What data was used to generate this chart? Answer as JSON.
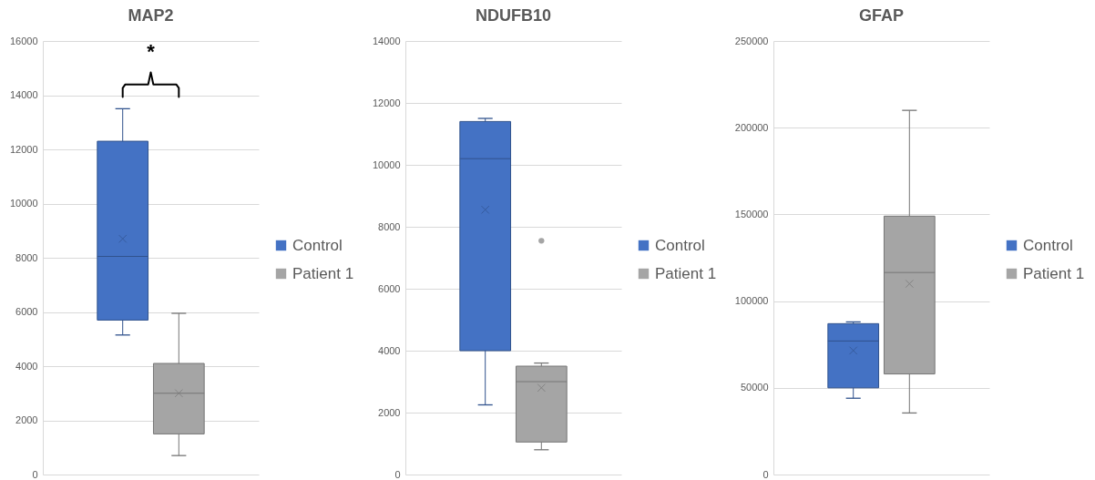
{
  "chart_data": [
    {
      "type": "box",
      "title": "MAP2",
      "categories": [
        null
      ],
      "series": [
        {
          "name": "Control",
          "color": "#4472c4",
          "boxes": [
            {
              "low": 5150,
              "q1": 5700,
              "median": 8050,
              "q3": 12300,
              "high": 13500,
              "mean": 8700
            }
          ]
        },
        {
          "name": "Patient 1",
          "color": "#a5a5a5",
          "boxes": [
            {
              "low": 700,
              "q1": 1500,
              "median": 3000,
              "q3": 4100,
              "high": 5950,
              "mean": 3000
            }
          ]
        }
      ],
      "ylim": [
        0,
        16000
      ],
      "yticks": [
        0,
        2000,
        4000,
        6000,
        8000,
        10000,
        12000,
        14000,
        16000
      ],
      "grid": "y",
      "legend": "right",
      "tick_labels": "y",
      "annotations": [
        "*"
      ]
    },
    {
      "type": "box",
      "title": "NDUFB10",
      "categories": [
        null
      ],
      "series": [
        {
          "name": "Control",
          "color": "#4472c4",
          "boxes": [
            {
              "low": 2250,
              "q1": 4000,
              "median": 10200,
              "q3": 11400,
              "high": 11500,
              "mean": 8550
            }
          ]
        },
        {
          "name": "Patient 1",
          "color": "#a5a5a5",
          "boxes": [
            {
              "low": 800,
              "q1": 1050,
              "median": 3000,
              "q3": 3500,
              "high": 3600,
              "mean": 2800,
              "outliers": [
                7550
              ]
            }
          ]
        }
      ],
      "ylim": [
        0,
        14000
      ],
      "yticks": [
        0,
        2000,
        4000,
        6000,
        8000,
        10000,
        12000,
        14000
      ],
      "grid": "y",
      "legend": "right",
      "tick_labels": "y"
    },
    {
      "type": "box",
      "title": "GFAP",
      "categories": [
        null
      ],
      "series": [
        {
          "name": "Control",
          "color": "#4472c4",
          "boxes": [
            {
              "low": 44000,
              "q1": 50000,
              "median": 77000,
              "q3": 87000,
              "high": 88000,
              "mean": 71500
            }
          ]
        },
        {
          "name": "Patient 1",
          "color": "#a5a5a5",
          "boxes": [
            {
              "low": 35500,
              "q1": 58000,
              "median": 116500,
              "q3": 149000,
              "high": 210000,
              "mean": 110000
            }
          ]
        }
      ],
      "ylim": [
        0,
        250000
      ],
      "yticks": [
        0,
        50000,
        100000,
        150000,
        200000,
        250000
      ],
      "grid": "y",
      "legend": "right",
      "tick_labels": "y"
    }
  ]
}
